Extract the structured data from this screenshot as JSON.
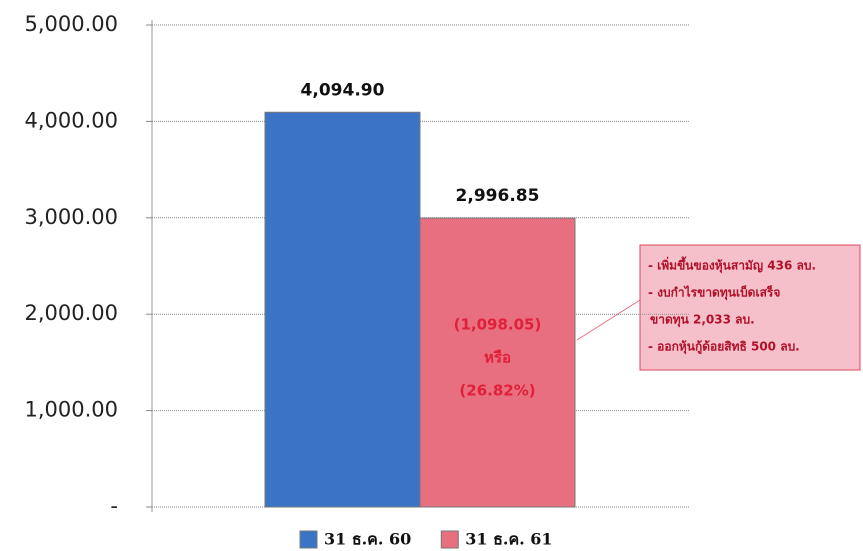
{
  "chart_data": {
    "type": "bar",
    "series": [
      {
        "name": "31 ธ.ค. 60",
        "color": "#3b74c6",
        "values": [
          4094.9
        ],
        "value_labels": [
          "4,094.90"
        ]
      },
      {
        "name": "31 ธ.ค. 61",
        "color": "#e86f80",
        "values": [
          2996.85
        ],
        "value_labels": [
          "2,996.85"
        ]
      }
    ],
    "ylim": [
      0,
      5000
    ],
    "yticks": [
      {
        "value": 0,
        "label": "-"
      },
      {
        "value": 1000,
        "label": "1,000.00"
      },
      {
        "value": 2000,
        "label": "2,000.00"
      },
      {
        "value": 3000,
        "label": "3,000.00"
      },
      {
        "value": 4000,
        "label": "4,000.00"
      },
      {
        "value": 5000,
        "label": "5,000.00"
      }
    ],
    "grid": true,
    "legend": "bottom",
    "annotations": {
      "change": [
        "(1,098.05)",
        "หรือ",
        "(26.82%)"
      ],
      "callout": [
        "- เพิ่มขึ้นของหุ้นสามัญ 436 ลบ.",
        "- งบกำไรขาดทุนเบ็ดเสร็จ",
        "ขาดทุน 2,033 ลบ.",
        "- ออกหุ้นกู้ด้อยสิทธิ 500 ลบ."
      ]
    }
  }
}
